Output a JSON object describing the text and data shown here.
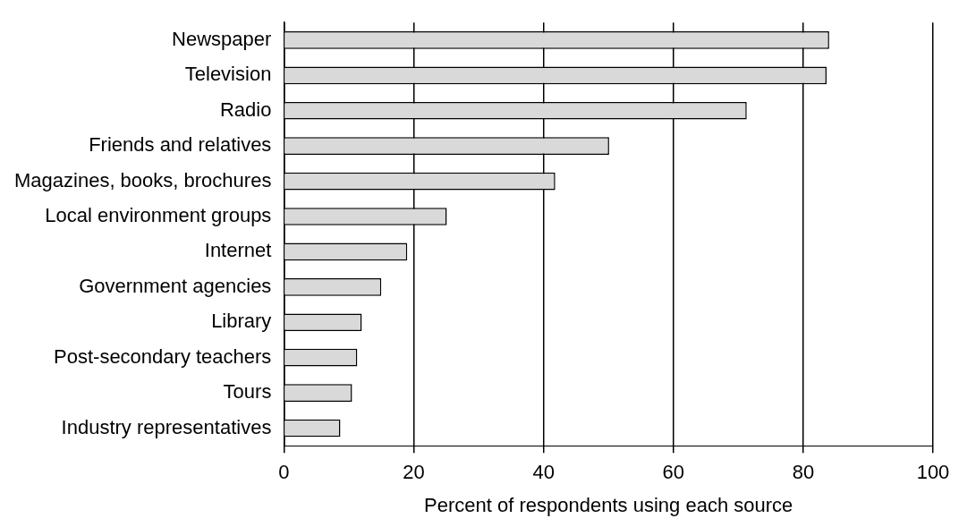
{
  "chart_data": {
    "type": "bar",
    "orientation": "horizontal",
    "xlabel": "Percent of respondents using each source",
    "categories": [
      "Newspaper",
      "Television",
      "Radio",
      "Friends and relatives",
      "Magazines, books, brochures",
      "Local environment groups",
      "Internet",
      "Government agencies",
      "Library",
      "Post-secondary teachers",
      "Tours",
      "Industry representatives"
    ],
    "values": [
      84,
      83.6,
      71.3,
      50.1,
      41.8,
      25.1,
      19,
      15,
      12,
      11.3,
      10.5,
      8.7
    ],
    "color": "#d9d9d9",
    "xlim": [
      0,
      100
    ],
    "xticks": [
      0,
      20,
      40,
      60,
      80,
      100
    ],
    "grid": "x",
    "legend": false
  }
}
